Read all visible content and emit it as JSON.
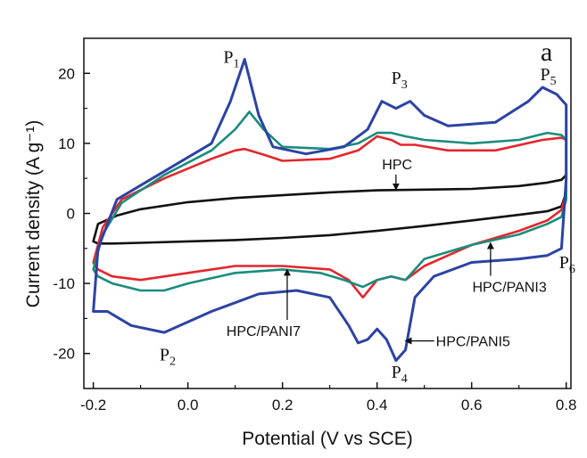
{
  "chart_data": {
    "type": "line",
    "title": "",
    "panel_label": "a",
    "xlabel": "Potential (V vs SCE)",
    "ylabel": "Current density (A g⁻¹)",
    "xlim": [
      -0.22,
      0.81
    ],
    "ylim": [
      -25,
      25
    ],
    "xticks": [
      -0.2,
      0.0,
      0.2,
      0.4,
      0.6,
      0.8
    ],
    "xtick_labels": [
      "-0.2",
      "0.0",
      "0.2",
      "0.4",
      "0.6",
      "0.8"
    ],
    "yticks": [
      -20,
      -10,
      0,
      10,
      20
    ],
    "ytick_labels": [
      "-20",
      "-10",
      "0",
      "10",
      "20"
    ],
    "grid": false,
    "series": [
      {
        "name": "HPC",
        "color": "#111111",
        "x": [
          -0.2,
          -0.19,
          -0.15,
          -0.1,
          0.0,
          0.1,
          0.2,
          0.3,
          0.4,
          0.5,
          0.6,
          0.7,
          0.76,
          0.79,
          0.8,
          0.8,
          0.79,
          0.76,
          0.7,
          0.6,
          0.5,
          0.4,
          0.3,
          0.2,
          0.1,
          0.0,
          -0.1,
          -0.16,
          -0.19,
          -0.2
        ],
        "y": [
          -4.0,
          -1.5,
          -0.3,
          0.6,
          1.6,
          2.2,
          2.6,
          3.0,
          3.3,
          3.4,
          3.5,
          3.9,
          4.4,
          4.8,
          5.5,
          3.0,
          1.0,
          0.3,
          -0.2,
          -1.0,
          -1.8,
          -2.5,
          -3.1,
          -3.5,
          -3.8,
          -4.0,
          -4.2,
          -4.3,
          -4.3,
          -4.0
        ]
      },
      {
        "name": "HPC/PANI3",
        "color": "#e3262c",
        "x": [
          -0.2,
          -0.18,
          -0.14,
          -0.05,
          0.05,
          0.1,
          0.12,
          0.16,
          0.2,
          0.3,
          0.36,
          0.4,
          0.43,
          0.45,
          0.48,
          0.55,
          0.65,
          0.75,
          0.79,
          0.8,
          0.8,
          0.79,
          0.76,
          0.7,
          0.6,
          0.55,
          0.5,
          0.46,
          0.43,
          0.4,
          0.37,
          0.34,
          0.3,
          0.2,
          0.1,
          0.0,
          -0.1,
          -0.16,
          -0.19,
          -0.2
        ],
        "y": [
          -7.0,
          -2.0,
          2.0,
          5.0,
          7.8,
          9.0,
          9.2,
          8.4,
          7.5,
          7.8,
          9.0,
          11.0,
          10.5,
          9.8,
          9.8,
          9.0,
          9.0,
          10.5,
          10.8,
          10.5,
          3.0,
          0.5,
          -1.0,
          -2.5,
          -4.5,
          -6.0,
          -7.5,
          -9.5,
          -9.0,
          -9.5,
          -12.0,
          -9.5,
          -8.0,
          -7.5,
          -7.5,
          -8.5,
          -9.5,
          -9.0,
          -8.0,
          -7.0
        ]
      },
      {
        "name": "HPC/PANI7",
        "color": "#1a8c7d",
        "x": [
          -0.2,
          -0.18,
          -0.14,
          -0.05,
          0.05,
          0.1,
          0.13,
          0.16,
          0.2,
          0.3,
          0.36,
          0.4,
          0.43,
          0.46,
          0.5,
          0.6,
          0.7,
          0.76,
          0.79,
          0.8,
          0.8,
          0.79,
          0.76,
          0.7,
          0.6,
          0.55,
          0.5,
          0.46,
          0.43,
          0.4,
          0.37,
          0.33,
          0.28,
          0.2,
          0.1,
          0.0,
          -0.05,
          -0.1,
          -0.16,
          -0.19,
          -0.2
        ],
        "y": [
          -8.0,
          -3.0,
          1.5,
          5.5,
          9.0,
          12.0,
          14.5,
          12.0,
          9.5,
          9.2,
          10.0,
          11.5,
          11.5,
          11.0,
          10.5,
          10.0,
          10.5,
          11.5,
          11.2,
          10.5,
          2.0,
          -0.5,
          -1.5,
          -3.0,
          -4.5,
          -5.5,
          -6.5,
          -9.5,
          -9.0,
          -9.5,
          -10.5,
          -9.5,
          -8.5,
          -8.0,
          -8.5,
          -10.0,
          -11.0,
          -11.0,
          -10.0,
          -9.0,
          -8.0
        ]
      },
      {
        "name": "HPC/PANI5",
        "color": "#2c43a4",
        "x": [
          -0.2,
          -0.19,
          -0.15,
          -0.05,
          0.05,
          0.09,
          0.12,
          0.15,
          0.18,
          0.25,
          0.33,
          0.38,
          0.41,
          0.44,
          0.47,
          0.5,
          0.55,
          0.65,
          0.72,
          0.75,
          0.78,
          0.8,
          0.8,
          0.79,
          0.76,
          0.7,
          0.6,
          0.52,
          0.48,
          0.46,
          0.44,
          0.42,
          0.4,
          0.38,
          0.36,
          0.34,
          0.3,
          0.23,
          0.15,
          0.05,
          -0.05,
          -0.12,
          -0.17,
          -0.2,
          -0.2
        ],
        "y": [
          -14.0,
          -5.0,
          2.0,
          6.0,
          10.0,
          16.0,
          22.0,
          14.0,
          9.5,
          8.5,
          9.5,
          12.0,
          16.0,
          15.0,
          16.0,
          14.0,
          12.5,
          13.0,
          16.0,
          18.0,
          17.0,
          15.5,
          5.0,
          -5.0,
          -6.0,
          -6.5,
          -7.0,
          -9.0,
          -12.0,
          -19.5,
          -21.0,
          -18.0,
          -16.5,
          -18.0,
          -18.5,
          -16.0,
          -12.0,
          -11.0,
          -11.5,
          -14.0,
          -17.0,
          -16.0,
          -14.0,
          -14.0,
          -14.0
        ]
      }
    ],
    "annotations": [
      {
        "text": "HPC",
        "x": 0.44,
        "y": 3.4,
        "text_x": 0.45,
        "text_y": 6.3
      },
      {
        "text": "HPC/PANI3",
        "x": 0.64,
        "y": -4.2,
        "text_x": 0.68,
        "text_y": -11.2
      },
      {
        "text": "HPC/PANI7",
        "x": 0.21,
        "y": -8.0,
        "text_x": 0.16,
        "text_y": -17.5
      },
      {
        "text": "HPC/PANI5",
        "x": 0.46,
        "y": -18.2,
        "text_x": 0.6,
        "text_y": -18.2
      }
    ],
    "peaks": [
      {
        "base": "P",
        "sub": "1",
        "x": 0.075,
        "y": 21.5
      },
      {
        "base": "P",
        "sub": "2",
        "x": -0.06,
        "y": -21.0
      },
      {
        "base": "P",
        "sub": "3",
        "x": 0.43,
        "y": 18.5
      },
      {
        "base": "P",
        "sub": "4",
        "x": 0.43,
        "y": -23.5
      },
      {
        "base": "P",
        "sub": "5",
        "x": 0.745,
        "y": 19.0
      },
      {
        "base": "P",
        "sub": "6",
        "x": 0.785,
        "y": -7.8
      }
    ]
  }
}
